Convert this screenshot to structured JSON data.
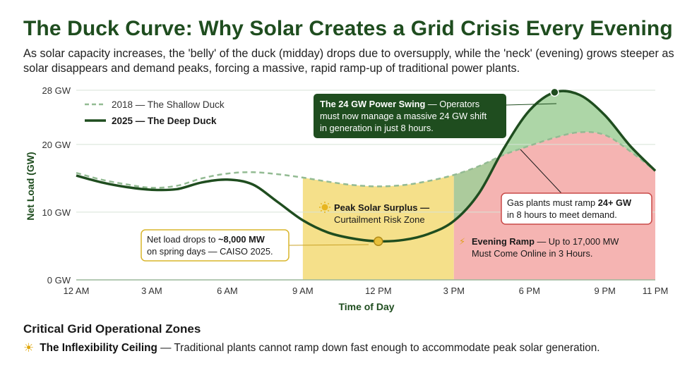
{
  "title": "The Duck Curve: Why Solar Creates a Grid Crisis Every Evening",
  "subtitle": "As solar capacity increases, the 'belly' of the duck (midday) drops due to oversupply, while the 'neck' (evening) grows steeper as solar disappears and demand peaks, forcing a massive, rapid ramp-up of traditional power plants.",
  "chart_data": {
    "type": "line",
    "xlabel": "Time of Day",
    "ylabel": "Net Load (GW)",
    "x": [
      0,
      1,
      2,
      3,
      4,
      5,
      6,
      7,
      8,
      9,
      10,
      11,
      12,
      13,
      14,
      15,
      16,
      17,
      18,
      19,
      20,
      21,
      22,
      23
    ],
    "x_ticks": [
      {
        "hour": 0,
        "label": "12 AM"
      },
      {
        "hour": 3,
        "label": "3 AM"
      },
      {
        "hour": 6,
        "label": "6 AM"
      },
      {
        "hour": 9,
        "label": "9 AM"
      },
      {
        "hour": 12,
        "label": "12 PM"
      },
      {
        "hour": 15,
        "label": "3 PM"
      },
      {
        "hour": 18,
        "label": "6 PM"
      },
      {
        "hour": 21,
        "label": "9 PM"
      },
      {
        "hour": 23,
        "label": "11 PM"
      }
    ],
    "y_ticks": [
      {
        "value": 0,
        "label": "0 GW"
      },
      {
        "value": 10,
        "label": "10 GW"
      },
      {
        "value": 20,
        "label": "20 GW"
      },
      {
        "value": 28,
        "label": "28 GW"
      }
    ],
    "xlim": [
      0,
      23
    ],
    "ylim": [
      0,
      28
    ],
    "grid": true,
    "legend_position": "top-left",
    "series": [
      {
        "name": "2018 — The Shallow Duck",
        "style": "dashed",
        "color": "#93bb93",
        "values": [
          15.8,
          14.8,
          14.1,
          13.6,
          13.9,
          15.0,
          15.7,
          15.9,
          15.6,
          15.1,
          14.5,
          14.0,
          13.8,
          14.0,
          14.6,
          15.5,
          16.8,
          18.5,
          19.8,
          21.0,
          21.8,
          21.4,
          19.0,
          16.1
        ]
      },
      {
        "name": "2025 — The Deep Duck",
        "style": "solid",
        "color": "#1f4d1f",
        "values": [
          15.4,
          14.4,
          13.7,
          13.3,
          13.4,
          14.4,
          14.8,
          14.1,
          11.5,
          8.8,
          7.0,
          6.1,
          5.7,
          5.9,
          6.8,
          8.7,
          12.8,
          19.5,
          25.0,
          27.7,
          27.3,
          24.3,
          19.8,
          16.1
        ]
      }
    ],
    "zones": [
      {
        "name": "Peak Solar Surplus",
        "from_hour": 9,
        "to_hour": 15,
        "color": "#f5e08a"
      },
      {
        "name": "Evening Ramp",
        "from_hour": 15,
        "to_hour": 23,
        "color": "#f5b4b2"
      }
    ],
    "markers": [
      {
        "hour": 12,
        "value": 5.7,
        "color": "#e7bf3a"
      },
      {
        "hour": 19,
        "value": 27.7,
        "color": "#1f4d1f"
      }
    ],
    "annotations": {
      "swing_bold": "The 24 GW Power Swing",
      "swing_text_1": " — Operators",
      "swing_text_2": "must now manage a massive 24 GW shift",
      "swing_text_3": "in generation in just 8 hours.",
      "surplus_line1": "Peak Solar Surplus —",
      "surplus_line2": "Curtailment Risk Zone",
      "drop_text_1": "Net load drops to ",
      "drop_bold": "~8,000 MW",
      "drop_text_2": "on spring days — CAISO 2025.",
      "gas_text_1": "Gas plants must ramp ",
      "gas_bold": "24+ GW",
      "gas_text_2": "in 8 hours to meet demand.",
      "ramp_bold": "Evening Ramp",
      "ramp_text_1": " — Up to 17,000 MW",
      "ramp_text_2": "Must Come Online in 3 Hours."
    }
  },
  "zones_section": {
    "heading": "Critical Grid Operational Zones",
    "item_icon": "sun-icon",
    "item_bold": "The Inflexibility Ceiling",
    "item_text": " — Traditional plants cannot ramp down fast enough to accommodate peak solar generation."
  }
}
